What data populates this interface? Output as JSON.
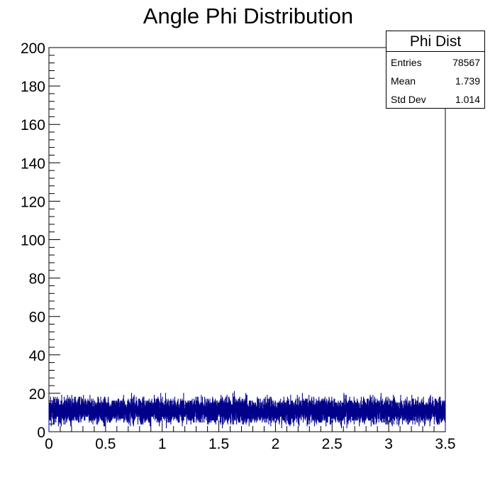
{
  "chart_data": {
    "type": "bar",
    "histogram": true,
    "title": "Angle Phi Distribution",
    "xlabel": "",
    "ylabel": "",
    "xlim": [
      0,
      3.5
    ],
    "ylim": [
      0,
      200
    ],
    "x_ticks": [
      "0",
      "0.5",
      "1",
      "1.5",
      "2",
      "2.5",
      "3",
      "3.5"
    ],
    "y_ticks": [
      "0",
      "20",
      "40",
      "60",
      "80",
      "100",
      "120",
      "140",
      "160",
      "180",
      "200"
    ],
    "line_color": "#00008b",
    "bins": 7000,
    "approx_bin_content_mean": 11,
    "approx_bin_content_range": [
      2,
      24
    ],
    "stats": {
      "name": "Phi Dist",
      "rows": [
        {
          "label": "Entries",
          "value": "78567"
        },
        {
          "label": "Mean",
          "value": "1.739"
        },
        {
          "label": "Std Dev",
          "value": "1.014"
        }
      ]
    }
  }
}
